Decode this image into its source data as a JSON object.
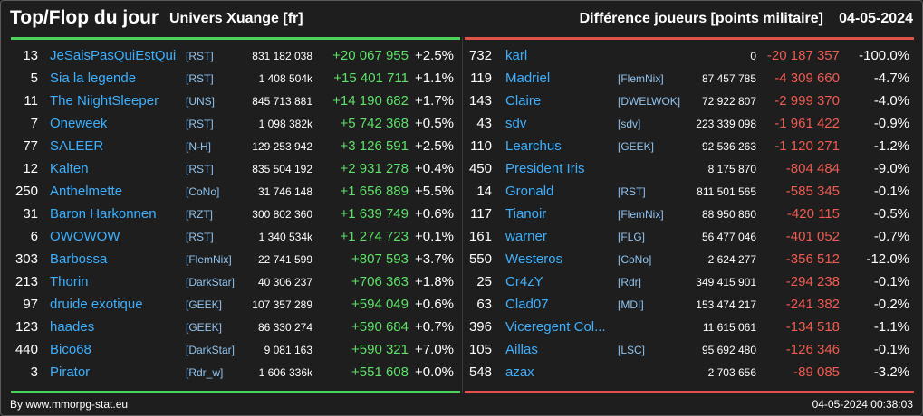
{
  "header": {
    "title": "Top/Flop du jour",
    "universe": "Univers Xuange [fr]",
    "subtitle": "Différence joueurs [points militaire]",
    "date": "04-05-2024"
  },
  "colors": {
    "top_accent": "#4cd35a",
    "flop_accent": "#e0534a",
    "name": "#3cb0ff",
    "gain": "#5ee06a",
    "loss": "#f05a50",
    "background": "#1e1e1e"
  },
  "top": [
    {
      "rank": "13",
      "name": "JeSaisPasQuiEstQui",
      "alliance": "[RST]",
      "points": "831 182 038",
      "diff": "+20 067 955",
      "pct": "+2.5%"
    },
    {
      "rank": "5",
      "name": "Sia la legende",
      "alliance": "[RST]",
      "points": "1 408 504k",
      "diff": "+15 401 711",
      "pct": "+1.1%"
    },
    {
      "rank": "11",
      "name": "The NiightSleeper",
      "alliance": "[UNS]",
      "points": "845 713 881",
      "diff": "+14 190 682",
      "pct": "+1.7%"
    },
    {
      "rank": "7",
      "name": "Oneweek",
      "alliance": "[RST]",
      "points": "1 098 382k",
      "diff": "+5 742 368",
      "pct": "+0.5%"
    },
    {
      "rank": "77",
      "name": "SALEER",
      "alliance": "[N-H]",
      "points": "129 253 942",
      "diff": "+3 126 591",
      "pct": "+2.5%"
    },
    {
      "rank": "12",
      "name": "Kalten",
      "alliance": "[RST]",
      "points": "835 504 192",
      "diff": "+2 931 278",
      "pct": "+0.4%"
    },
    {
      "rank": "250",
      "name": "Anthelmette",
      "alliance": "[CoNo]",
      "points": "31 746 148",
      "diff": "+1 656 889",
      "pct": "+5.5%"
    },
    {
      "rank": "31",
      "name": "Baron Harkonnen",
      "alliance": "[RZT]",
      "points": "300 802 360",
      "diff": "+1 639 749",
      "pct": "+0.6%"
    },
    {
      "rank": "6",
      "name": "OWOWOW",
      "alliance": "[RST]",
      "points": "1 340 534k",
      "diff": "+1 274 723",
      "pct": "+0.1%"
    },
    {
      "rank": "303",
      "name": "Barbossa",
      "alliance": "[FlemNix]",
      "points": "22 741 599",
      "diff": "+807 593",
      "pct": "+3.7%"
    },
    {
      "rank": "213",
      "name": "Thorin",
      "alliance": "[DarkStar]",
      "points": "40 306 237",
      "diff": "+706 363",
      "pct": "+1.8%"
    },
    {
      "rank": "97",
      "name": "druide exotique",
      "alliance": "[GEEK]",
      "points": "107 357 289",
      "diff": "+594 049",
      "pct": "+0.6%"
    },
    {
      "rank": "123",
      "name": "haades",
      "alliance": "[GEEK]",
      "points": "86 330 274",
      "diff": "+590 684",
      "pct": "+0.7%"
    },
    {
      "rank": "440",
      "name": "Bico68",
      "alliance": "[DarkStar]",
      "points": "9 081 163",
      "diff": "+590 321",
      "pct": "+7.0%"
    },
    {
      "rank": "3",
      "name": "Pirator",
      "alliance": "[Rdr_w]",
      "points": "1 606 336k",
      "diff": "+551 608",
      "pct": "+0.0%"
    }
  ],
  "flop": [
    {
      "rank": "732",
      "name": "karl",
      "alliance": "",
      "points": "0",
      "diff": "-20 187 357",
      "pct": "-100.0%"
    },
    {
      "rank": "119",
      "name": "Madriel",
      "alliance": "[FlemNix]",
      "points": "87 457 785",
      "diff": "-4 309 660",
      "pct": "-4.7%"
    },
    {
      "rank": "143",
      "name": "Claire",
      "alliance": "[DWELWOK]",
      "points": "72 922 807",
      "diff": "-2 999 370",
      "pct": "-4.0%"
    },
    {
      "rank": "43",
      "name": "sdv",
      "alliance": "[sdv]",
      "points": "223 339 098",
      "diff": "-1 961 422",
      "pct": "-0.9%"
    },
    {
      "rank": "110",
      "name": "Learchus",
      "alliance": "[GEEK]",
      "points": "92 536 263",
      "diff": "-1 120 271",
      "pct": "-1.2%"
    },
    {
      "rank": "450",
      "name": "President Iris",
      "alliance": "",
      "points": "8 175 870",
      "diff": "-804 484",
      "pct": "-9.0%"
    },
    {
      "rank": "14",
      "name": "Gronald",
      "alliance": "[RST]",
      "points": "811 501 565",
      "diff": "-585 345",
      "pct": "-0.1%"
    },
    {
      "rank": "117",
      "name": "Tianoir",
      "alliance": "[FlemNix]",
      "points": "88 950 860",
      "diff": "-420 115",
      "pct": "-0.5%"
    },
    {
      "rank": "161",
      "name": "warner",
      "alliance": "[FLG]",
      "points": "56 477 046",
      "diff": "-401 052",
      "pct": "-0.7%"
    },
    {
      "rank": "550",
      "name": "Westeros",
      "alliance": "[CoNo]",
      "points": "2 624 277",
      "diff": "-356 512",
      "pct": "-12.0%"
    },
    {
      "rank": "25",
      "name": "Cr4zY",
      "alliance": "[Rdr]",
      "points": "349 415 901",
      "diff": "-294 238",
      "pct": "-0.1%"
    },
    {
      "rank": "63",
      "name": "Clad07",
      "alliance": "[MDI]",
      "points": "153 474 217",
      "diff": "-241 382",
      "pct": "-0.2%"
    },
    {
      "rank": "396",
      "name": "Viceregent Col...",
      "alliance": "",
      "points": "11 615 061",
      "diff": "-134 518",
      "pct": "-1.1%"
    },
    {
      "rank": "105",
      "name": "Aillas",
      "alliance": "[LSC]",
      "points": "95 692 480",
      "diff": "-126 346",
      "pct": "-0.1%"
    },
    {
      "rank": "548",
      "name": "azax",
      "alliance": "",
      "points": "2 703 656",
      "diff": "-89 085",
      "pct": "-3.2%"
    }
  ],
  "footer": {
    "source": "By www.mmorpg-stat.eu",
    "timestamp": "04-05-2024 00:38:03"
  }
}
